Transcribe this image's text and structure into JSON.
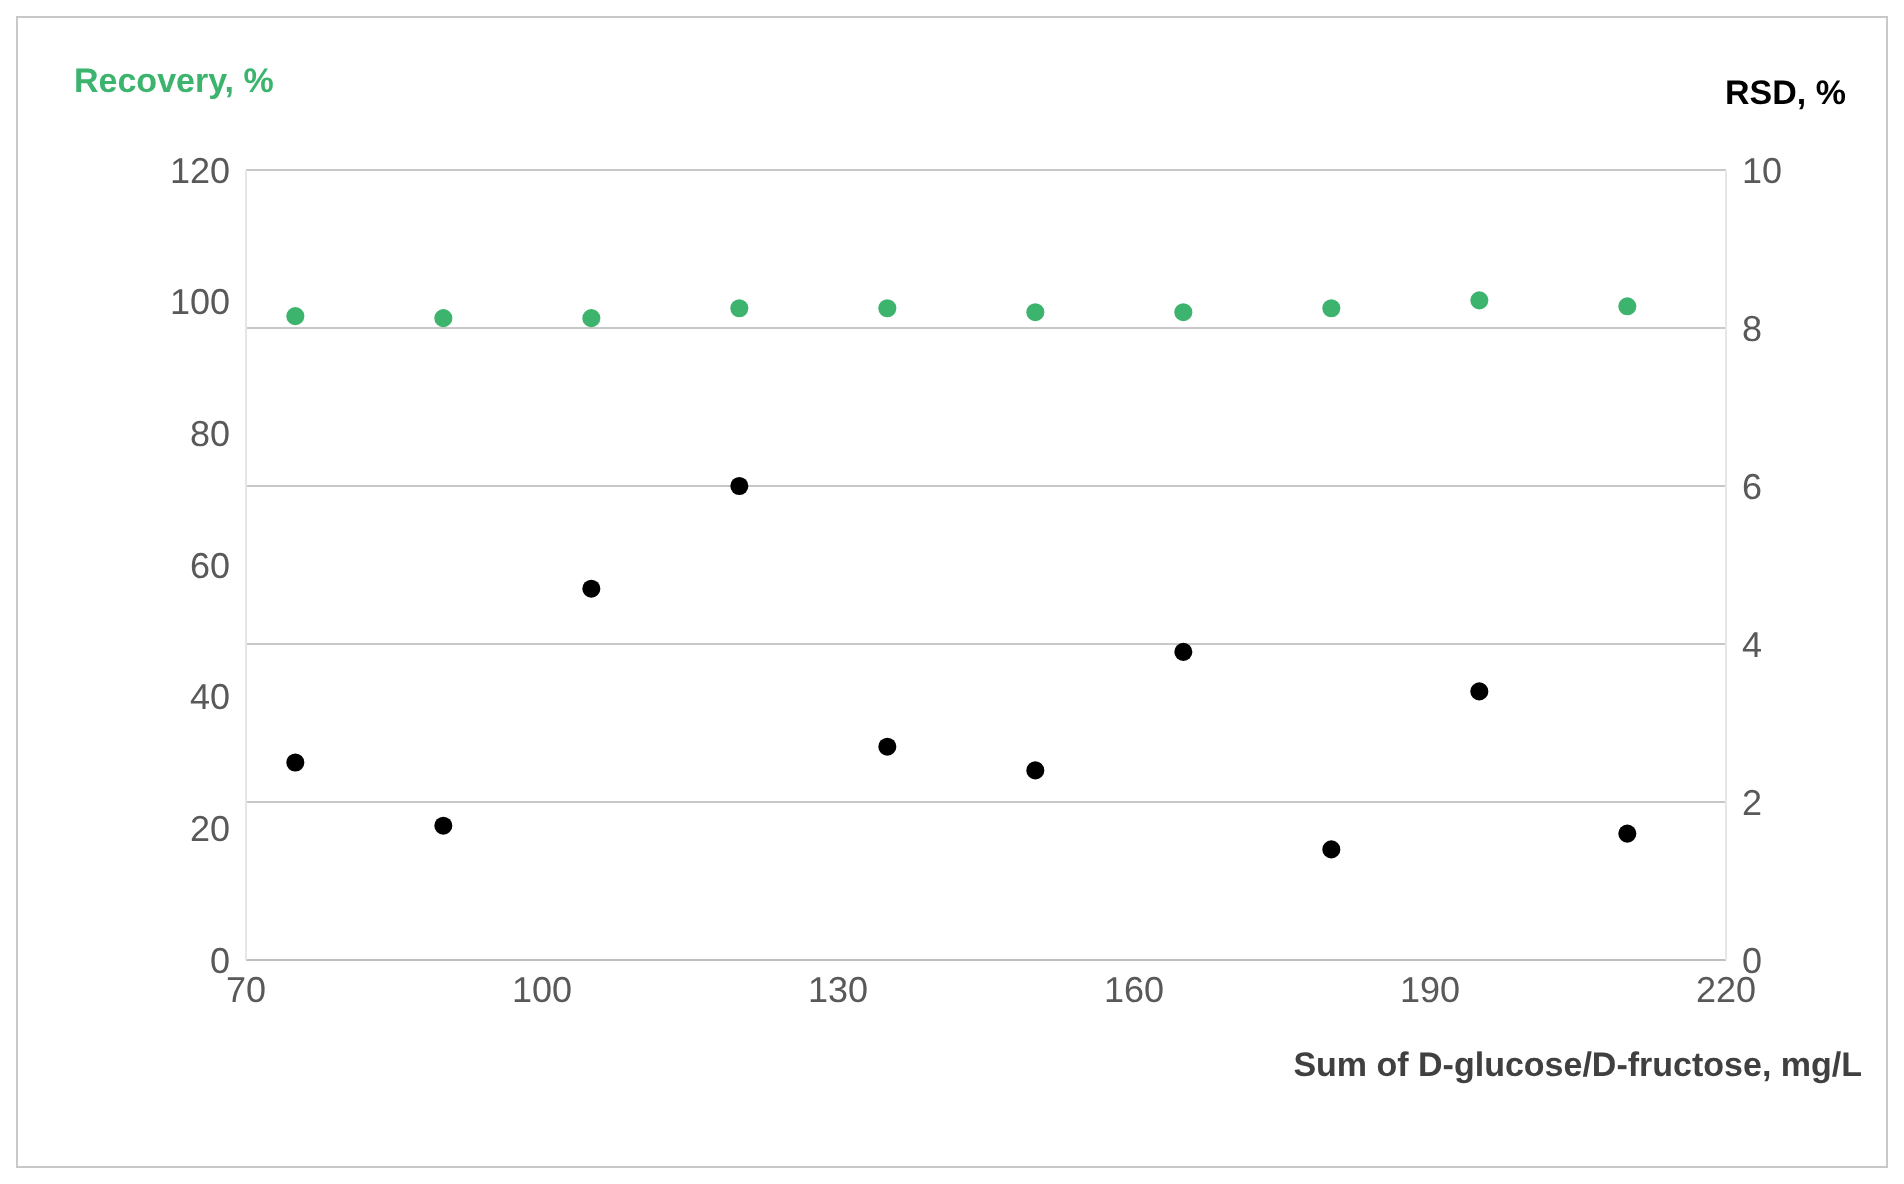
{
  "chart_data": {
    "type": "scatter",
    "xlabel": "Sum of D-glucose/D-fructose, mg/L",
    "ylabel": "Recovery, %",
    "y2label": "RSD, %",
    "x": [
      75,
      90,
      105,
      120,
      135,
      150,
      165,
      180,
      195,
      210
    ],
    "xlim": [
      70,
      220
    ],
    "xticks": [
      70,
      100,
      130,
      160,
      190,
      220
    ],
    "ylim": [
      0,
      120
    ],
    "yticks": [
      0,
      20,
      40,
      60,
      80,
      100,
      120
    ],
    "y2lim": [
      0,
      10
    ],
    "y2ticks": [
      0,
      2,
      4,
      6,
      8,
      10
    ],
    "grid": "y2",
    "marker": "circle",
    "series": [
      {
        "color": "#3cb46e",
        "values": [
          97.8,
          97.5,
          97.5,
          99,
          99,
          98.4,
          98.4,
          99,
          100.2,
          99.3
        ]
      },
      {
        "color": "#000000",
        "axis": "y2",
        "values": [
          2.5,
          1.7,
          4.7,
          6.0,
          2.7,
          2.4,
          3.9,
          1.4,
          3.4,
          1.6
        ]
      }
    ]
  }
}
